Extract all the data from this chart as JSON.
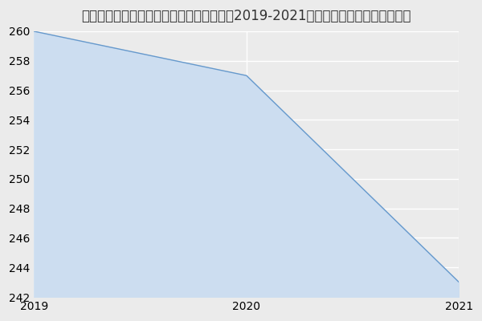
{
  "title": "内蒙古科技大学材料与冶金学院冶金工程（2019-2021历年复试）研究生录取分数线",
  "x": [
    2019,
    2020,
    2021
  ],
  "y": [
    260,
    257,
    243
  ],
  "line_color": "#6699cc",
  "fill_color": "#ccddf0",
  "background_color": "#ebebeb",
  "grid_color": "#ffffff",
  "ylim": [
    242,
    260
  ],
  "yticks": [
    242,
    244,
    246,
    248,
    250,
    252,
    254,
    256,
    258,
    260
  ],
  "xticks": [
    2019,
    2020,
    2021
  ],
  "title_fontsize": 12,
  "tick_fontsize": 10
}
